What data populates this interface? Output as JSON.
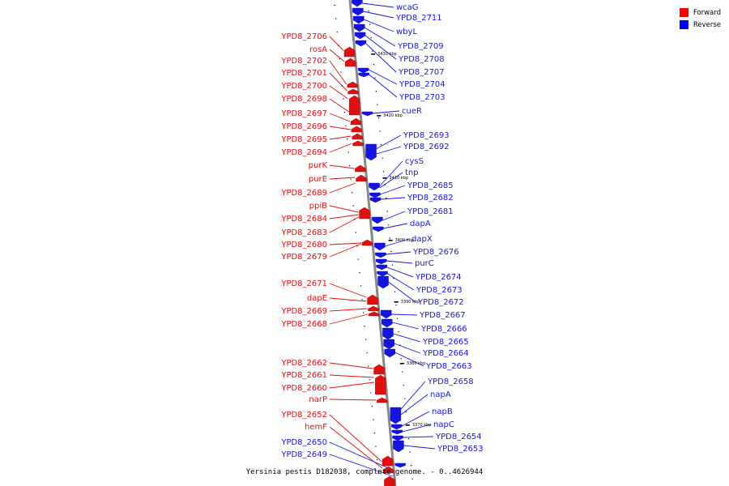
{
  "caption": "Yersinia pestis D182038, complete genome. - 0..4626944",
  "legend": [
    {
      "label": "Forward",
      "color": "#ff0000"
    },
    {
      "label": "Reverse",
      "color": "#0000ff"
    }
  ],
  "colors": {
    "forward": "#e01010",
    "reverse": "#1515e0",
    "backbone": "#888888"
  },
  "ticks": [
    "3430 kbp",
    "3420 kbp",
    "3410 kbp",
    "3400 kbp",
    "3390 kbp",
    "3380 kbp",
    "3370 kbp"
  ],
  "forward_labels": [
    "YPD8_2706",
    "rosA",
    "YPD8_2702",
    "YPD8_2701",
    "YPD8_2700",
    "YPD8_2698",
    "YPD8_2697",
    "YPD8_2696",
    "YPD8_2695",
    "YPD8_2694",
    "purK",
    "purE",
    "YPD8_2689",
    "ppiB",
    "YPD8_2684",
    "YPD8_2683",
    "YPD8_2680",
    "YPD8_2679",
    "YPD8_2671",
    "dapE",
    "YPD8_2669",
    "YPD8_2668",
    "YPD8_2662",
    "YPD8_2661",
    "YPD8_2660",
    "narP",
    "YPD8_2652",
    "hemF"
  ],
  "reverse_left_labels": [
    "YPD8_2650",
    "YPD8_2649"
  ],
  "reverse_labels": [
    "wcaG",
    "YPD8_2711",
    "wbyL",
    "YPD8_2709",
    "YPD8_2708",
    "YPD8_2707",
    "YPD8_2704",
    "YPD8_2703",
    "cueR",
    "YPD8_2693",
    "YPD8_2692",
    "cysS",
    "tnp",
    "YPD8_2685",
    "YPD8_2682",
    "YPD8_2681",
    "dapA",
    "dapX",
    "YPD8_2676",
    "purC",
    "YPD8_2674",
    "YPD8_2673",
    "YPD8_2672",
    "YPD8_2667",
    "YPD8_2666",
    "YPD8_2665",
    "YPD8_2664",
    "YPD8_2663",
    "YPD8_2658",
    "napA",
    "napB",
    "napC",
    "YPD8_2654",
    "YPD8_2653"
  ]
}
